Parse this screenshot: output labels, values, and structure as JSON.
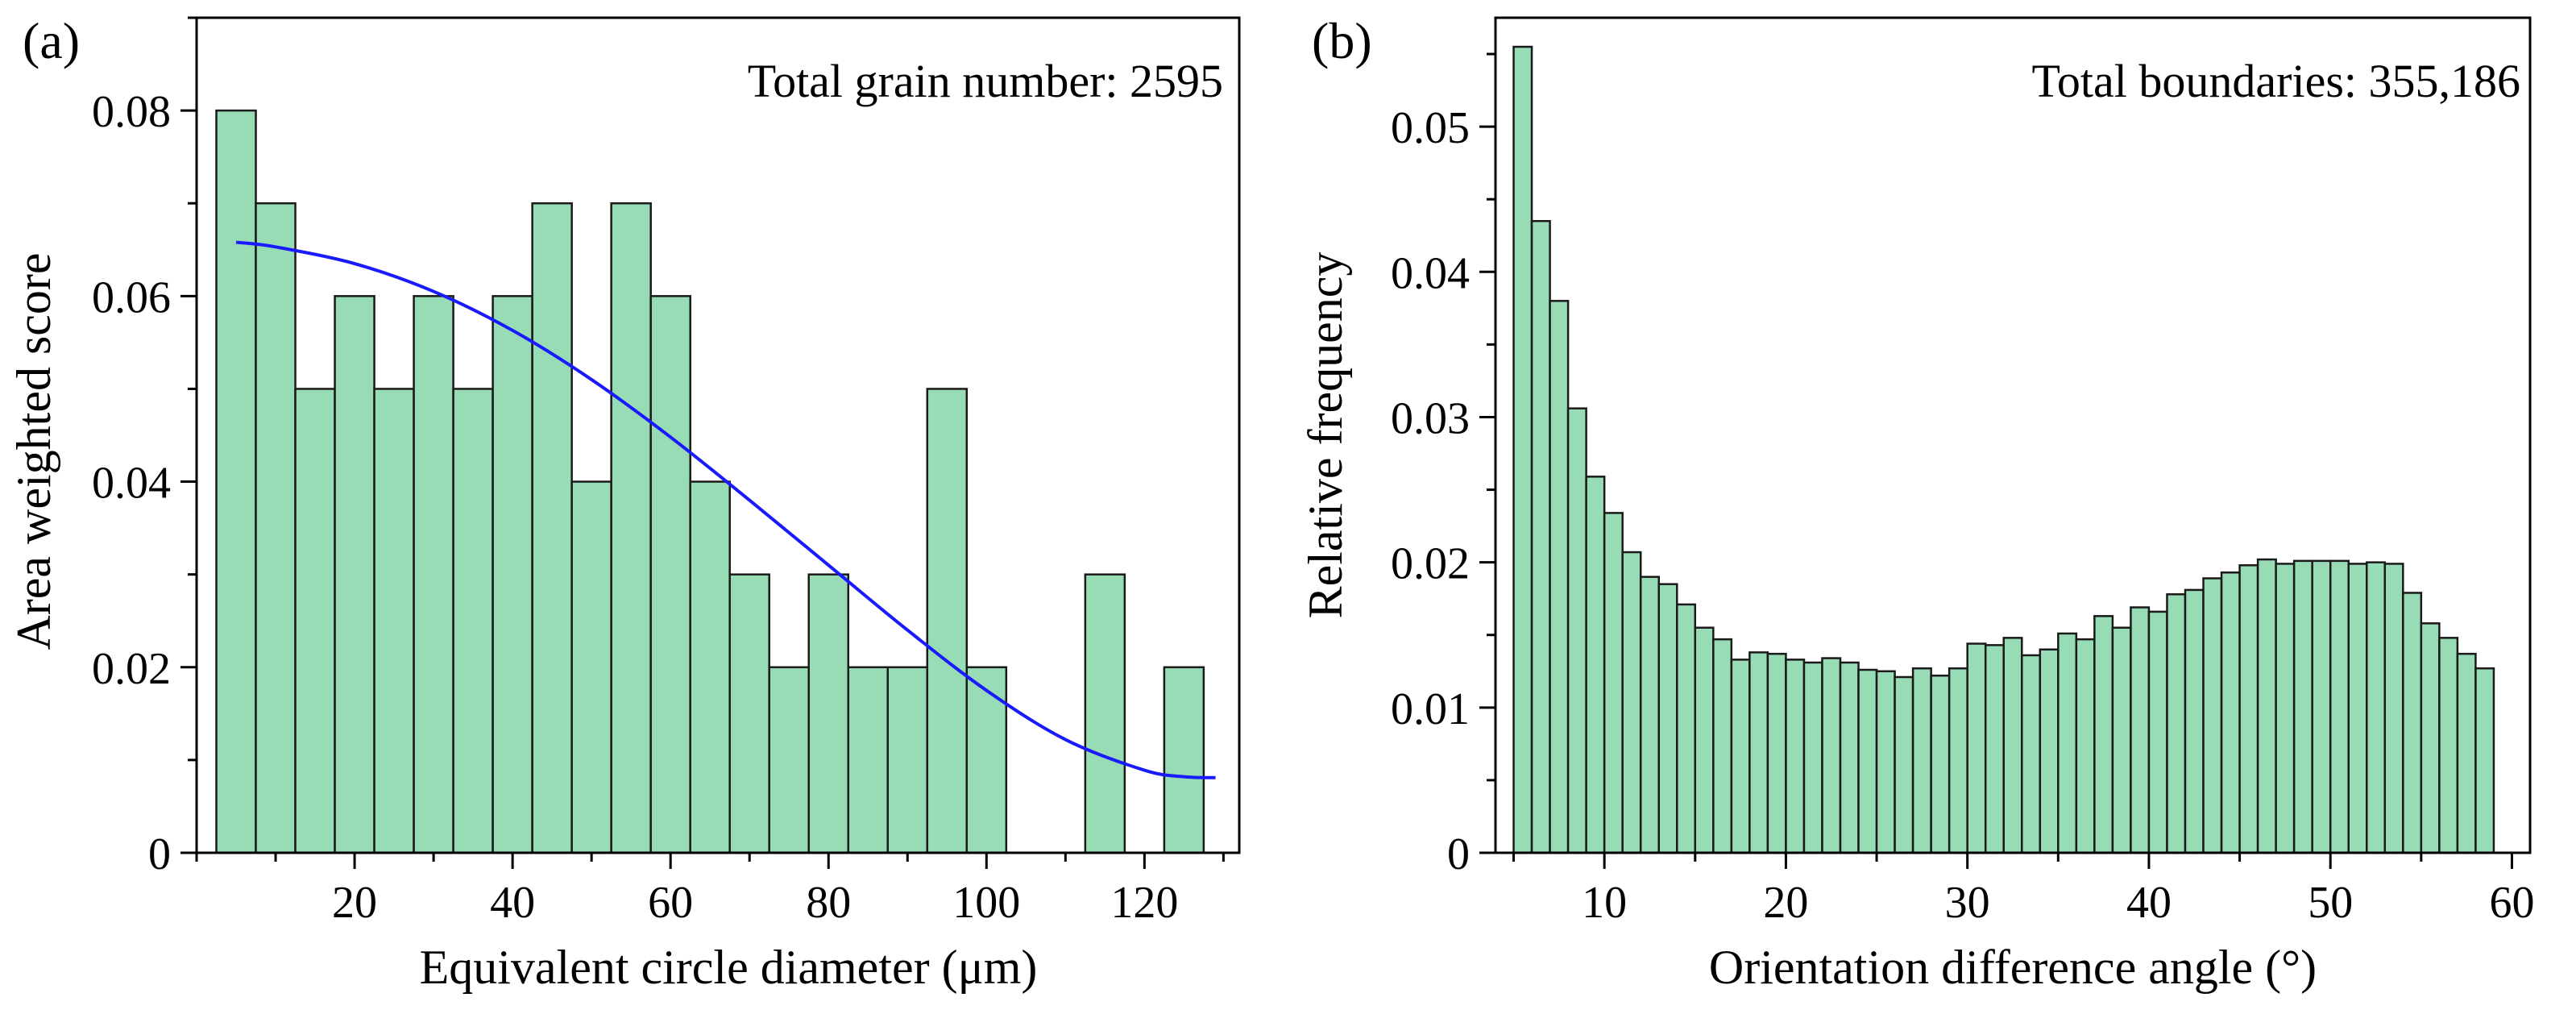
{
  "chart_data": [
    {
      "type": "bar",
      "panel_label": "(a)",
      "annotation": "Total grain number: 2595",
      "xlabel": "Equivalent circle diameter (μm)",
      "ylabel": "Area weighted score",
      "xlim": [
        0,
        132
      ],
      "ylim": [
        0,
        0.09
      ],
      "bin_width": 5,
      "x_centers": [
        5,
        10,
        15,
        20,
        25,
        30,
        35,
        40,
        45,
        50,
        55,
        60,
        65,
        70,
        75,
        80,
        85,
        90,
        95,
        100,
        105,
        110,
        115,
        120,
        125
      ],
      "values": [
        0.08,
        0.07,
        0.05,
        0.06,
        0.05,
        0.06,
        0.05,
        0.06,
        0.07,
        0.04,
        0.07,
        0.06,
        0.04,
        0.03,
        0.02,
        0.03,
        0.02,
        0.02,
        0.05,
        0.02,
        0,
        0,
        0.03,
        0,
        0.02
      ],
      "xticks": [
        20,
        40,
        60,
        80,
        100,
        120
      ],
      "xtick_labels": [
        "20",
        "40",
        "60",
        "80",
        "100",
        "120"
      ],
      "yticks": [
        0,
        0.02,
        0.04,
        0.06,
        0.08
      ],
      "ytick_labels": [
        "0",
        "0.02",
        "0.04",
        "0.06",
        "0.08"
      ],
      "fit_curve": {
        "color": "#1a1aff",
        "x": [
          5,
          10,
          20,
          30,
          40,
          50,
          60,
          70,
          80,
          90,
          100,
          110,
          120,
          125,
          129
        ],
        "y": [
          0.0658,
          0.0653,
          0.0635,
          0.0605,
          0.0563,
          0.051,
          0.0448,
          0.038,
          0.031,
          0.024,
          0.0175,
          0.0122,
          0.0089,
          0.0082,
          0.0081
        ]
      }
    },
    {
      "type": "bar",
      "panel_label": "(b)",
      "annotation": "Total boundaries: 355,186",
      "xlabel": "Orientation difference angle (°)",
      "ylabel": "Relative frequency",
      "xlim": [
        4,
        61
      ],
      "ylim": [
        0,
        0.0575
      ],
      "bin_width": 1,
      "x_centers": [
        5.5,
        6.5,
        7.5,
        8.5,
        9.5,
        10.5,
        11.5,
        12.5,
        13.5,
        14.5,
        15.5,
        16.5,
        17.5,
        18.5,
        19.5,
        20.5,
        21.5,
        22.5,
        23.5,
        24.5,
        25.5,
        26.5,
        27.5,
        28.5,
        29.5,
        30.5,
        31.5,
        32.5,
        33.5,
        34.5,
        35.5,
        36.5,
        37.5,
        38.5,
        39.5,
        40.5,
        41.5,
        42.5,
        43.5,
        44.5,
        45.5,
        46.5,
        47.5,
        48.5,
        49.5,
        50.5,
        51.5,
        52.5,
        53.5,
        54.5,
        55.5,
        56.5,
        57.5,
        58.5
      ],
      "values": [
        0.0555,
        0.0435,
        0.038,
        0.0306,
        0.0259,
        0.0234,
        0.0207,
        0.019,
        0.0185,
        0.0171,
        0.0155,
        0.0147,
        0.0133,
        0.0138,
        0.0137,
        0.0133,
        0.0131,
        0.0134,
        0.0131,
        0.0126,
        0.0125,
        0.0121,
        0.0127,
        0.0122,
        0.0127,
        0.0144,
        0.0143,
        0.0148,
        0.0136,
        0.014,
        0.0151,
        0.0147,
        0.0163,
        0.0155,
        0.0169,
        0.0166,
        0.0178,
        0.0181,
        0.0189,
        0.0193,
        0.0198,
        0.0202,
        0.0199,
        0.0201,
        0.0201,
        0.0201,
        0.0199,
        0.02,
        0.0199,
        0.0179,
        0.0158,
        0.0148,
        0.0137,
        0.0127
      ],
      "xticks": [
        10,
        20,
        30,
        40,
        50,
        60
      ],
      "xtick_labels": [
        "10",
        "20",
        "30",
        "40",
        "50",
        "60"
      ],
      "yticks": [
        0,
        0.01,
        0.02,
        0.03,
        0.04,
        0.05
      ],
      "ytick_labels": [
        "0",
        "0.01",
        "0.02",
        "0.03",
        "0.04",
        "0.05"
      ]
    }
  ],
  "colors": {
    "bar_fill": "#98dcb5",
    "bar_edge": "#1a1a1a",
    "fit_line": "#1a1aff"
  }
}
